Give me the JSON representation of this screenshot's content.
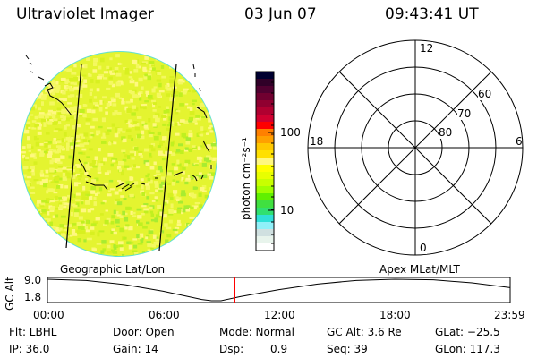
{
  "header": {
    "title": "Ultraviolet Imager",
    "date": "03 Jun 07",
    "time": "09:43:41 UT"
  },
  "colorbar": {
    "label": "photon cm⁻²s⁻¹",
    "ticks": [
      "100",
      "10"
    ],
    "colors": [
      "#000030",
      "#300028",
      "#500030",
      "#700030",
      "#900030",
      "#b00030",
      "#d00030",
      "#ff0000",
      "#ff8000",
      "#ffa000",
      "#ffc800",
      "#ffe000",
      "#fff880",
      "#ffff00",
      "#e8ff00",
      "#c8ff00",
      "#a0ff00",
      "#60f000",
      "#40e040",
      "#30e070",
      "#30e0d8",
      "#90f0f8",
      "#d0e0e0",
      "#e8f4ec",
      "#ffffff"
    ]
  },
  "polar": {
    "mlt_labels": {
      "top": "12",
      "bottom": "0",
      "left": "18",
      "right": "6"
    },
    "lat_labels": [
      "60",
      "70",
      "80"
    ]
  },
  "timeline": {
    "left_label": "Geographic Lat/Lon",
    "right_label": "Apex MLat/MLT",
    "y_axis_label": "GC Alt",
    "y_ticks": [
      "9.0",
      "1.8"
    ],
    "x_ticks": [
      "00:00",
      "06:00",
      "12:00",
      "18:00",
      "23:59"
    ],
    "current_time_marker_color": "#ff0000",
    "altitude_curve_points": [
      [
        0,
        9.0
      ],
      [
        2,
        8.6
      ],
      [
        4,
        7.2
      ],
      [
        6,
        5.0
      ],
      [
        8,
        2.2
      ],
      [
        8.5,
        1.8
      ],
      [
        9,
        1.8
      ],
      [
        10,
        3.2
      ],
      [
        12,
        5.5
      ],
      [
        14,
        7.4
      ],
      [
        16,
        8.6
      ],
      [
        18,
        9.0
      ],
      [
        20,
        8.8
      ],
      [
        22,
        7.8
      ],
      [
        23.98,
        6.2
      ]
    ]
  },
  "status": {
    "flt": "Flt: LBHL",
    "ip": "IP: 36.0",
    "door": "Door: Open",
    "gain": "Gain: 14",
    "mode": "Mode: Normal",
    "dsp_label": "Dsp:",
    "dsp_value": "0.9",
    "gcalt": "GC Alt: 3.6 Re",
    "seq": "Seq: 39",
    "glat": "GLat: −25.5",
    "glon": "GLon: 117.3"
  }
}
